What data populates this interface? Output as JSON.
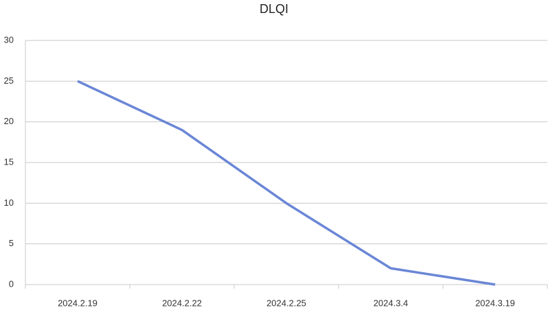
{
  "chart_data": {
    "type": "line",
    "title": "DLQI",
    "categories": [
      "2024.2.19",
      "2024.2.22",
      "2024.2.25",
      "2024.3.4",
      "2024.3.19"
    ],
    "values": [
      25,
      19,
      10,
      2,
      0
    ],
    "color": "#6a86d6",
    "ylim": [
      0,
      30
    ],
    "yticks": [
      0,
      5,
      10,
      15,
      20,
      25,
      30
    ],
    "grid": true
  }
}
